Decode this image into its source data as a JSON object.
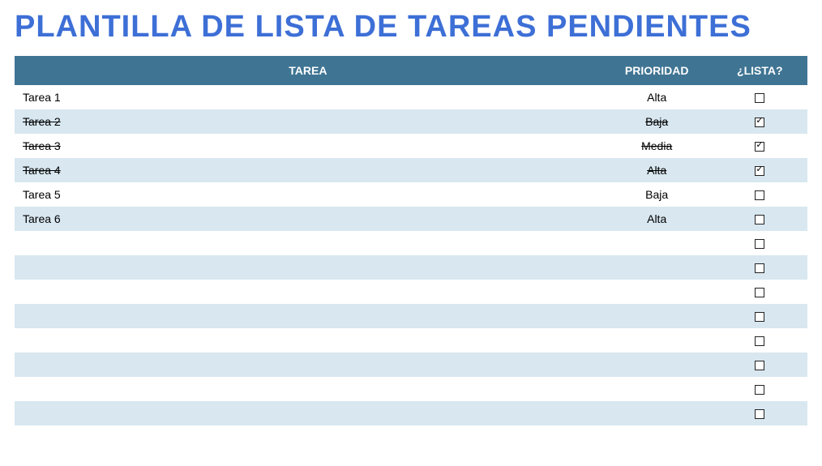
{
  "title": "PLANTILLA DE LISTA DE TAREAS PENDIENTES",
  "title_color": "#3d6fd6",
  "header_bg": "#3f7493",
  "row_alt_bg": "#d8e7f0",
  "row_bg": "#ffffff",
  "columns": {
    "task": "TAREA",
    "priority": "PRIORIDAD",
    "done": "¿LISTA?"
  },
  "rows": [
    {
      "task": "Tarea 1",
      "priority": "Alta",
      "done": false
    },
    {
      "task": "Tarea 2",
      "priority": "Baja",
      "done": true
    },
    {
      "task": "Tarea 3",
      "priority": "Media",
      "done": true
    },
    {
      "task": "Tarea 4",
      "priority": "Alta",
      "done": true
    },
    {
      "task": "Tarea 5",
      "priority": "Baja",
      "done": false
    },
    {
      "task": "Tarea 6",
      "priority": "Alta",
      "done": false
    },
    {
      "task": "",
      "priority": "",
      "done": false
    },
    {
      "task": "",
      "priority": "",
      "done": false
    },
    {
      "task": "",
      "priority": "",
      "done": false
    },
    {
      "task": "",
      "priority": "",
      "done": false
    },
    {
      "task": "",
      "priority": "",
      "done": false
    },
    {
      "task": "",
      "priority": "",
      "done": false
    },
    {
      "task": "",
      "priority": "",
      "done": false
    },
    {
      "task": "",
      "priority": "",
      "done": false
    }
  ]
}
